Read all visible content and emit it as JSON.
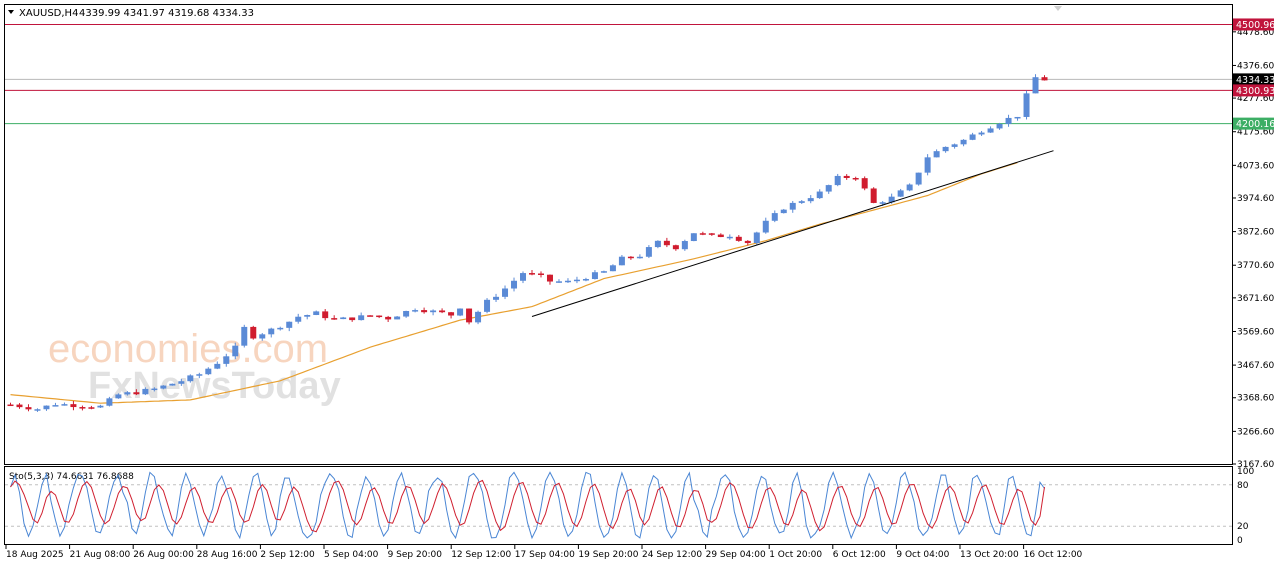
{
  "header": {
    "symbol": "XAUUSD,H4",
    "ohlc": "4339.99 4341.97 4319.68 4334.33"
  },
  "watermark": {
    "brand_a": "economies.com",
    "brand_b": "FxNewsToday"
  },
  "chart_data": {
    "type": "candlestick",
    "symbol": "XAUUSD",
    "timeframe": "H4",
    "ylim": [
      3167.6,
      4560
    ],
    "y_ticks": [
      "4478.60",
      "4376.60",
      "4277.60",
      "4175.60",
      "4073.60",
      "3974.60",
      "3872.60",
      "3770.60",
      "3671.60",
      "3569.60",
      "3467.60",
      "3368.60",
      "3266.60",
      "3167.60"
    ],
    "x_ticks": [
      "18 Aug 2025",
      "21 Aug 08:00",
      "26 Aug 00:00",
      "28 Aug 16:00",
      "2 Sep 12:00",
      "5 Sep 04:00",
      "9 Sep 20:00",
      "12 Sep 12:00",
      "17 Sep 04:00",
      "19 Sep 20:00",
      "24 Sep 12:00",
      "29 Sep 04:00",
      "1 Oct 20:00",
      "6 Oct 12:00",
      "9 Oct 04:00",
      "13 Oct 20:00",
      "16 Oct 12:00"
    ],
    "price_path": [
      [
        0,
        3348
      ],
      [
        3,
        3335
      ],
      [
        5,
        3350
      ],
      [
        8,
        3345
      ],
      [
        10,
        3342
      ],
      [
        12,
        3378
      ],
      [
        14,
        3385
      ],
      [
        16,
        3395
      ],
      [
        19,
        3420
      ],
      [
        21,
        3440
      ],
      [
        23,
        3475
      ],
      [
        25,
        3520
      ],
      [
        26,
        3580
      ],
      [
        27,
        3555
      ],
      [
        29,
        3575
      ],
      [
        31,
        3600
      ],
      [
        32,
        3615
      ],
      [
        34,
        3625
      ],
      [
        36,
        3605
      ],
      [
        38,
        3610
      ],
      [
        40,
        3618
      ],
      [
        42,
        3610
      ],
      [
        45,
        3640
      ],
      [
        47,
        3630
      ],
      [
        49,
        3620
      ],
      [
        50,
        3645
      ],
      [
        51,
        3600
      ],
      [
        53,
        3660
      ],
      [
        55,
        3700
      ],
      [
        57,
        3748
      ],
      [
        59,
        3735
      ],
      [
        60,
        3722
      ],
      [
        62,
        3720
      ],
      [
        64,
        3735
      ],
      [
        66,
        3750
      ],
      [
        68,
        3790
      ],
      [
        70,
        3800
      ],
      [
        72,
        3840
      ],
      [
        74,
        3825
      ],
      [
        76,
        3870
      ],
      [
        78,
        3858
      ],
      [
        80,
        3862
      ],
      [
        82,
        3840
      ],
      [
        84,
        3900
      ],
      [
        86,
        3945
      ],
      [
        88,
        3968
      ],
      [
        90,
        3990
      ],
      [
        92,
        4035
      ],
      [
        94,
        4040
      ],
      [
        95,
        4000
      ],
      [
        96,
        3958
      ],
      [
        98,
        3975
      ],
      [
        100,
        4010
      ],
      [
        102,
        4100
      ],
      [
        104,
        4130
      ],
      [
        106,
        4150
      ],
      [
        108,
        4180
      ],
      [
        110,
        4205
      ],
      [
        112,
        4225
      ],
      [
        113,
        4285
      ],
      [
        114,
        4340
      ],
      [
        115,
        4334
      ]
    ],
    "stochastic": {
      "label": "Sto(5,3,3) 74.6631 76.8688",
      "main": 74.6631,
      "signal": 76.8688,
      "levels": [
        80,
        20
      ],
      "ylim": [
        0,
        100
      ],
      "y_ticks": [
        "100",
        "80",
        "20",
        "0"
      ]
    },
    "moving_average": {
      "path": [
        [
          0,
          3378
        ],
        [
          10,
          3352
        ],
        [
          20,
          3362
        ],
        [
          30,
          3420
        ],
        [
          40,
          3522
        ],
        [
          50,
          3604
        ],
        [
          58,
          3645
        ],
        [
          66,
          3730
        ],
        [
          76,
          3790
        ],
        [
          84,
          3845
        ],
        [
          90,
          3895
        ],
        [
          96,
          3938
        ],
        [
          102,
          3982
        ],
        [
          108,
          4048
        ],
        [
          112,
          4082
        ]
      ]
    },
    "trendline": {
      "from": [
        58,
        3615
      ],
      "to": [
        116,
        4118
      ]
    },
    "levels": [
      {
        "price": 4500.96,
        "label": "4500.96",
        "color": "#c0143c"
      },
      {
        "price": 4334.33,
        "label": "4334.33",
        "color": "#000000"
      },
      {
        "price": 4300.93,
        "label": "4300.93",
        "color": "#c0143c"
      },
      {
        "price": 4200.16,
        "label": "4200.16",
        "color": "#3cae64"
      }
    ],
    "colors": {
      "bull": "#5a8ad6",
      "bear": "#d01c2e",
      "ma": "#e8a030",
      "sto_main": "#4a86d4",
      "sto_signal": "#d02030"
    }
  }
}
